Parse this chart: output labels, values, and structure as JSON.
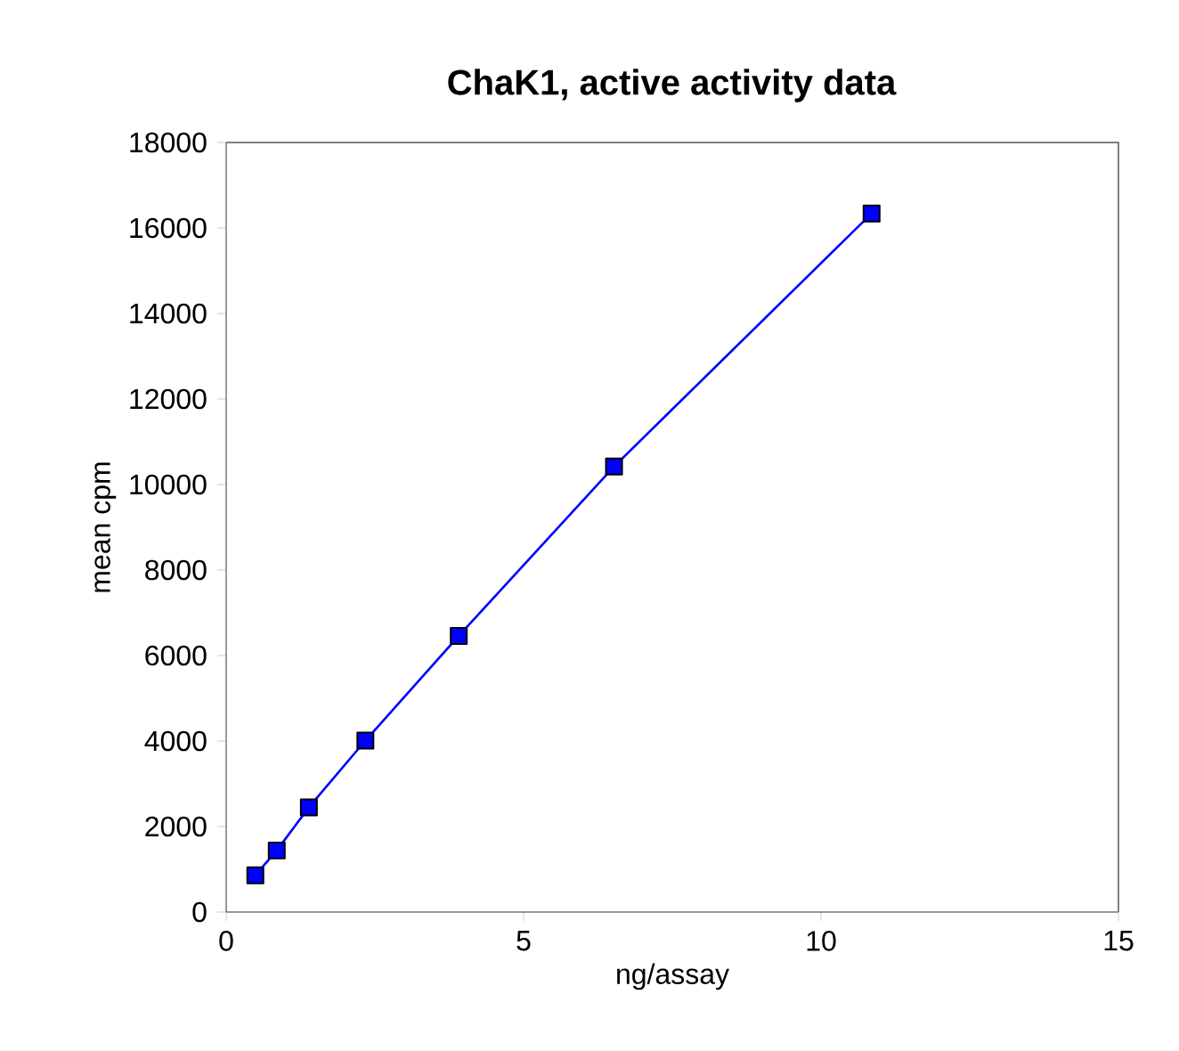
{
  "chart_data": {
    "type": "line",
    "title": "ChaK1, active activity data",
    "xlabel": "ng/assay",
    "ylabel": "mean cpm",
    "x": [
      0.49,
      0.85,
      1.39,
      2.34,
      3.91,
      6.52,
      10.85
    ],
    "values": [
      860,
      1440,
      2450,
      4010,
      6460,
      10420,
      16340
    ],
    "color": "#0000ff",
    "marker": "square",
    "xlim": [
      0,
      15
    ],
    "xticks": [
      0,
      5,
      10,
      15
    ],
    "ylim": [
      0,
      18000
    ],
    "yticks": [
      0,
      2000,
      4000,
      6000,
      8000,
      10000,
      12000,
      14000,
      16000,
      18000
    ],
    "grid": false
  }
}
